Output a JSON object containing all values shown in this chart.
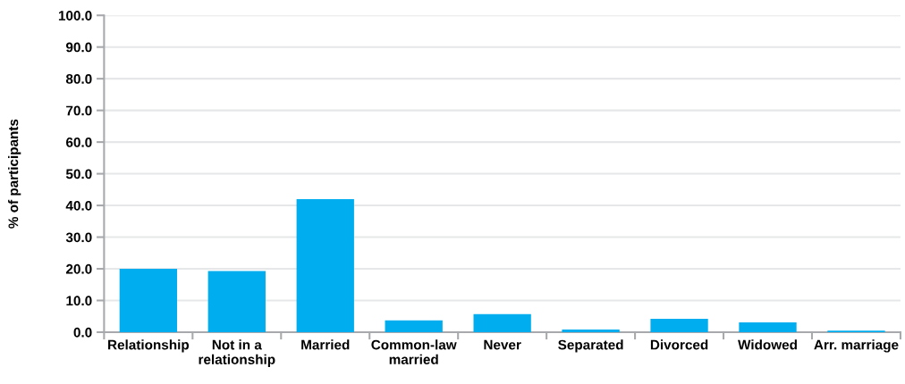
{
  "chart_data": {
    "type": "bar",
    "ylabel": "% of participants",
    "categories": [
      "Relationship",
      "Not in a\nrelationship",
      "Married",
      "Common-law\nmarried",
      "Never",
      "Separated",
      "Divorced",
      "Widowed",
      "Arr. marriage"
    ],
    "values": [
      20.0,
      19.3,
      42.0,
      3.7,
      5.7,
      0.8,
      4.2,
      3.1,
      0.5
    ],
    "color": "#00aeef",
    "ylim": [
      0,
      100
    ],
    "yticks": [
      {
        "value": 0,
        "label": "0.0"
      },
      {
        "value": 10,
        "label": "10.0"
      },
      {
        "value": 20,
        "label": "20.0"
      },
      {
        "value": 30,
        "label": "30.0"
      },
      {
        "value": 40,
        "label": "40.0"
      },
      {
        "value": 50,
        "label": "50.0"
      },
      {
        "value": 60,
        "label": "60.0"
      },
      {
        "value": 70,
        "label": "70.0"
      },
      {
        "value": 80,
        "label": "80.0"
      },
      {
        "value": 90,
        "label": "90.0"
      },
      {
        "value": 100,
        "label": "100.0"
      }
    ],
    "grid": "y"
  }
}
